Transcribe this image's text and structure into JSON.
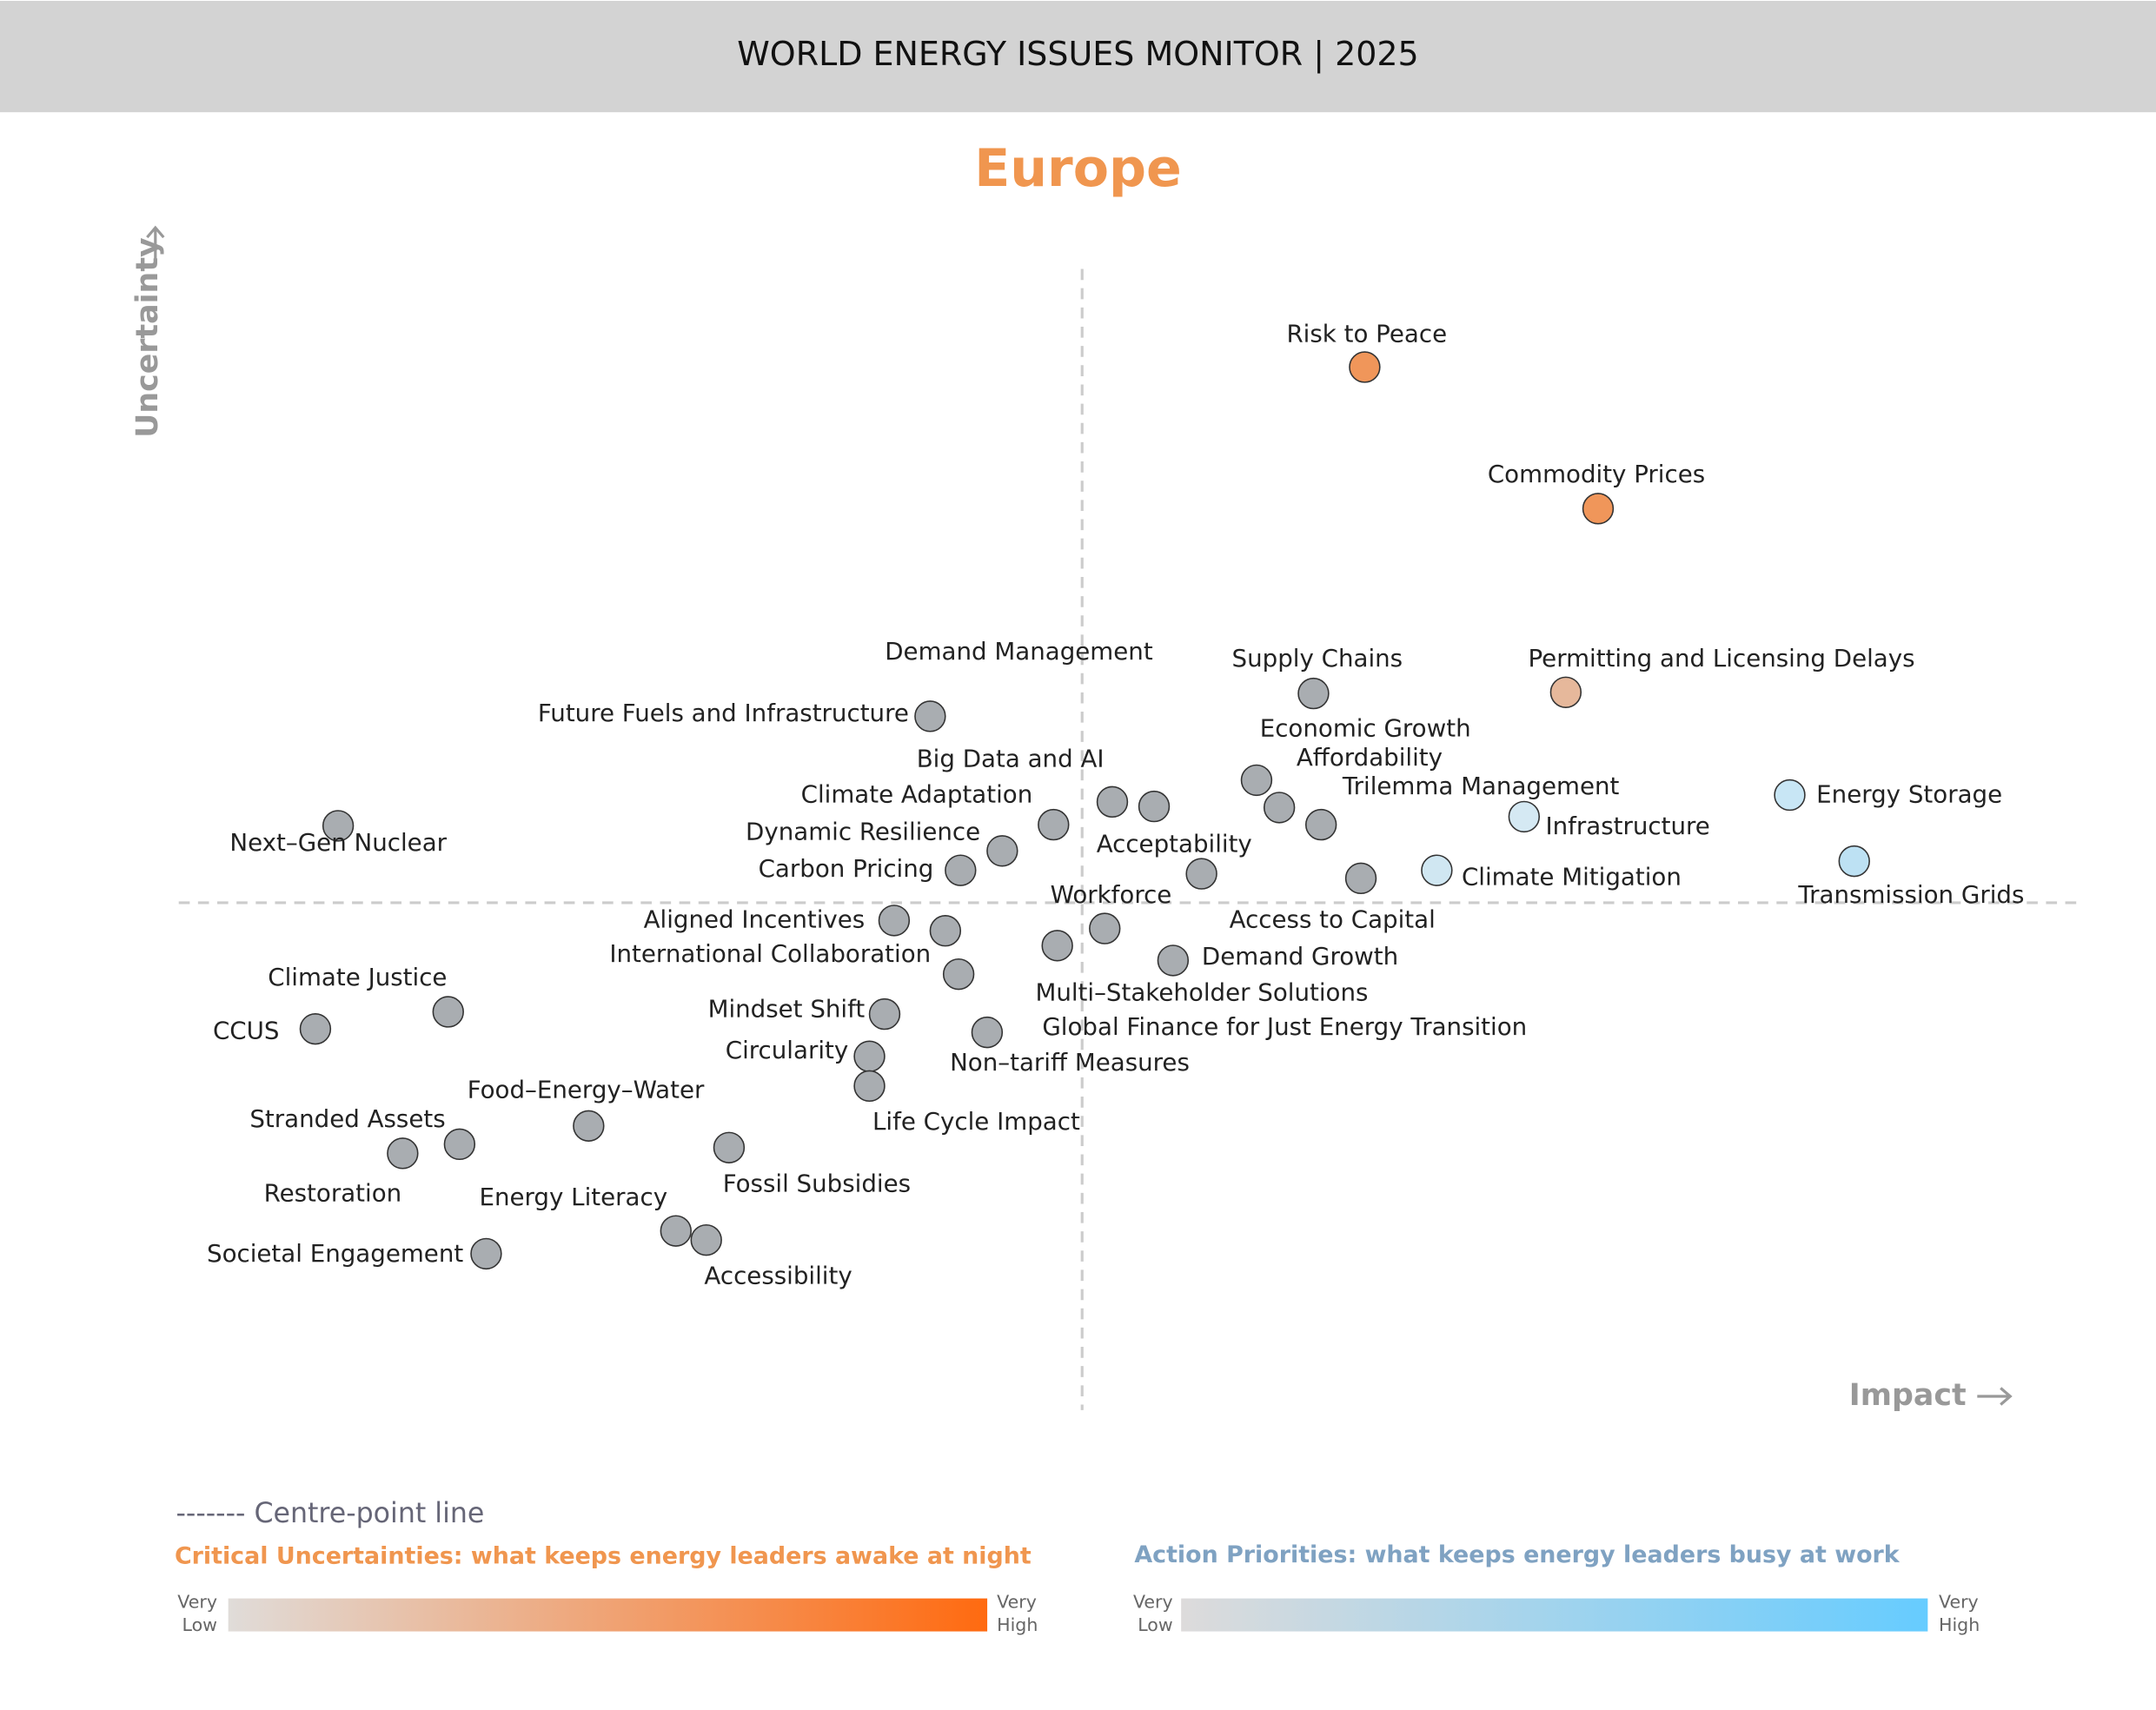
{
  "header": {
    "title": "WORLD ENERGY ISSUES MONITOR | 2025"
  },
  "chart_data": {
    "type": "scatter",
    "title": "Europe",
    "x_label": "Impact",
    "y_label": "Uncertainty",
    "xlim": [
      0,
      100
    ],
    "ylim": [
      0,
      100
    ],
    "labels": [
      "Risk to Peace",
      "Commodity Prices",
      "Permitting and Licensing Delays",
      "Energy Storage",
      "Transmission Grids",
      "Infrastructure",
      "Climate Mitigation",
      "Supply Chains",
      "Economic Growth",
      "Affordability",
      "Trilemma Management",
      "Access to Capital",
      "Acceptability",
      "Demand Management",
      "Big Data and AI",
      "Future Fuels and Infrastructure",
      "Climate Adaptation",
      "Dynamic Resilience",
      "Carbon Pricing",
      "Next–Gen Nuclear",
      "Aligned Incentives",
      "International Collaboration",
      "Workforce",
      "Multi–Stakeholder Solutions",
      "Demand Growth",
      "Global Finance for Just Energy Transition",
      "Non–tariff Measures",
      "Mindset Shift",
      "Circularity",
      "Life Cycle Impact",
      "Climate Justice",
      "CCUS",
      "Food–Energy–Water",
      "Stranded Assets",
      "Restoration",
      "Fossil Subsidies",
      "Energy Literacy",
      "Accessibility",
      "Societal Engagement"
    ],
    "x": [
      62.5,
      74.8,
      73.1,
      84.9,
      88.3,
      70.9,
      66.3,
      59.8,
      56.8,
      58.0,
      60.2,
      62.3,
      53.9,
      51.4,
      49.2,
      39.6,
      46.1,
      43.4,
      41.2,
      8.4,
      37.7,
      40.4,
      48.8,
      46.3,
      52.4,
      41.1,
      42.6,
      37.2,
      36.4,
      36.4,
      14.2,
      7.2,
      21.6,
      14.8,
      11.8,
      29.0,
      26.2,
      27.8,
      16.2
    ],
    "values": [
      91.4,
      79.0,
      62.9,
      53.9,
      48.1,
      52.0,
      47.3,
      62.8,
      55.2,
      52.8,
      51.3,
      46.6,
      47.0,
      52.9,
      53.3,
      60.8,
      51.3,
      49.0,
      47.3,
      51.2,
      42.9,
      42.0,
      42.2,
      40.7,
      39.4,
      38.2,
      33.1,
      34.7,
      31.0,
      28.4,
      34.9,
      33.4,
      24.9,
      23.3,
      22.5,
      23.0,
      15.7,
      14.9,
      13.7
    ],
    "colors": [
      "#f0965a",
      "#f0965a",
      "#e6b89b",
      "#c8e6f5",
      "#bde1f3",
      "#d5e9f3",
      "#d0e7f2",
      "#a9adb1",
      "#a9adb1",
      "#a9adb1",
      "#a9adb1",
      "#a9adb1",
      "#a9adb1",
      "#a9adb1",
      "#a9adb1",
      "#a9adb1",
      "#a9adb1",
      "#a9adb1",
      "#a9adb1",
      "#a9adb1",
      "#a9adb1",
      "#a9adb1",
      "#a9adb1",
      "#a9adb1",
      "#a9adb1",
      "#a9adb1",
      "#a9adb1",
      "#a9adb1",
      "#a9adb1",
      "#a9adb1",
      "#a9adb1",
      "#a9adb1",
      "#a9adb1",
      "#a9adb1",
      "#a9adb1",
      "#a9adb1",
      "#a9adb1",
      "#a9adb1",
      "#a9adb1"
    ]
  },
  "legend": {
    "centre_line": "------- Centre-point line",
    "critical": "Critical Uncertainties: what keeps energy leaders awake at night",
    "action": "Action Priorities: what keeps energy leaders busy at work",
    "very_low": [
      "Very",
      "Low"
    ],
    "very_high": [
      "Very",
      "High"
    ]
  }
}
